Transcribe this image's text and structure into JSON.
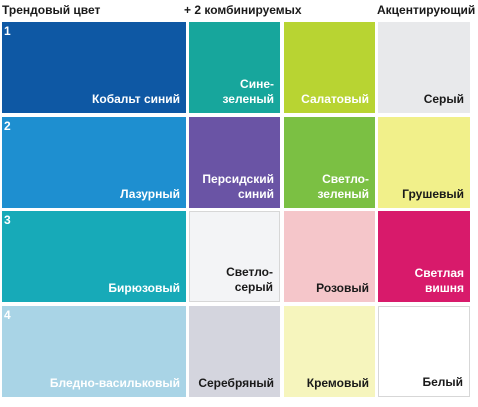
{
  "headers": {
    "trend": "Трендовый цвет",
    "combo": "+ 2 комбинируемых",
    "accent": "Акцентирующий"
  },
  "rows": [
    {
      "number": "1",
      "trend": {
        "label": [
          "Кобальт синий"
        ],
        "color": "#0e58a4",
        "text_color": "#ffffff"
      },
      "combo1": {
        "label": [
          "Сине-зеленый"
        ],
        "color": "#17a69c",
        "text_color": "#ffffff"
      },
      "combo2": {
        "label": [
          "Салатовый"
        ],
        "color": "#b8d432",
        "text_color": "#ffffff"
      },
      "accent": {
        "label": [
          "Серый"
        ],
        "color": "#e8e9eb",
        "text_color": "#1a1a1a"
      }
    },
    {
      "number": "2",
      "trend": {
        "label": [
          "Лазурный"
        ],
        "color": "#1e8fd0",
        "text_color": "#ffffff"
      },
      "combo1": {
        "label": [
          "Персидский",
          "синий"
        ],
        "color": "#6a54a5",
        "text_color": "#ffffff"
      },
      "combo2": {
        "label": [
          "Светло-",
          "зеленый"
        ],
        "color": "#7bc043",
        "text_color": "#ffffff"
      },
      "accent": {
        "label": [
          "Грушевый"
        ],
        "color": "#f1f08a",
        "text_color": "#1a1a1a"
      }
    },
    {
      "number": "3",
      "trend": {
        "label": [
          "Бирюзовый"
        ],
        "color": "#17aab8",
        "text_color": "#ffffff"
      },
      "combo1": {
        "label": [
          "Светло-серый"
        ],
        "color": "#f3f4f6",
        "text_color": "#1a1a1a"
      },
      "combo2": {
        "label": [
          "Розовый"
        ],
        "color": "#f5c6ca",
        "text_color": "#1a1a1a"
      },
      "accent": {
        "label": [
          "Светлая",
          "вишня"
        ],
        "color": "#d81a6b",
        "text_color": "#ffffff"
      }
    },
    {
      "number": "4",
      "trend": {
        "label": [
          "Бледно-васильковый"
        ],
        "color": "#a9d4e6",
        "text_color": "#ffffff"
      },
      "combo1": {
        "label": [
          "Серебряный"
        ],
        "color": "#d4d5de",
        "text_color": "#1a1a1a"
      },
      "combo2": {
        "label": [
          "Кремовый"
        ],
        "color": "#f6f5bd",
        "text_color": "#1a1a1a"
      },
      "accent": {
        "label": [
          "Белый"
        ],
        "color": "#ffffff",
        "text_color": "#1a1a1a"
      }
    }
  ]
}
